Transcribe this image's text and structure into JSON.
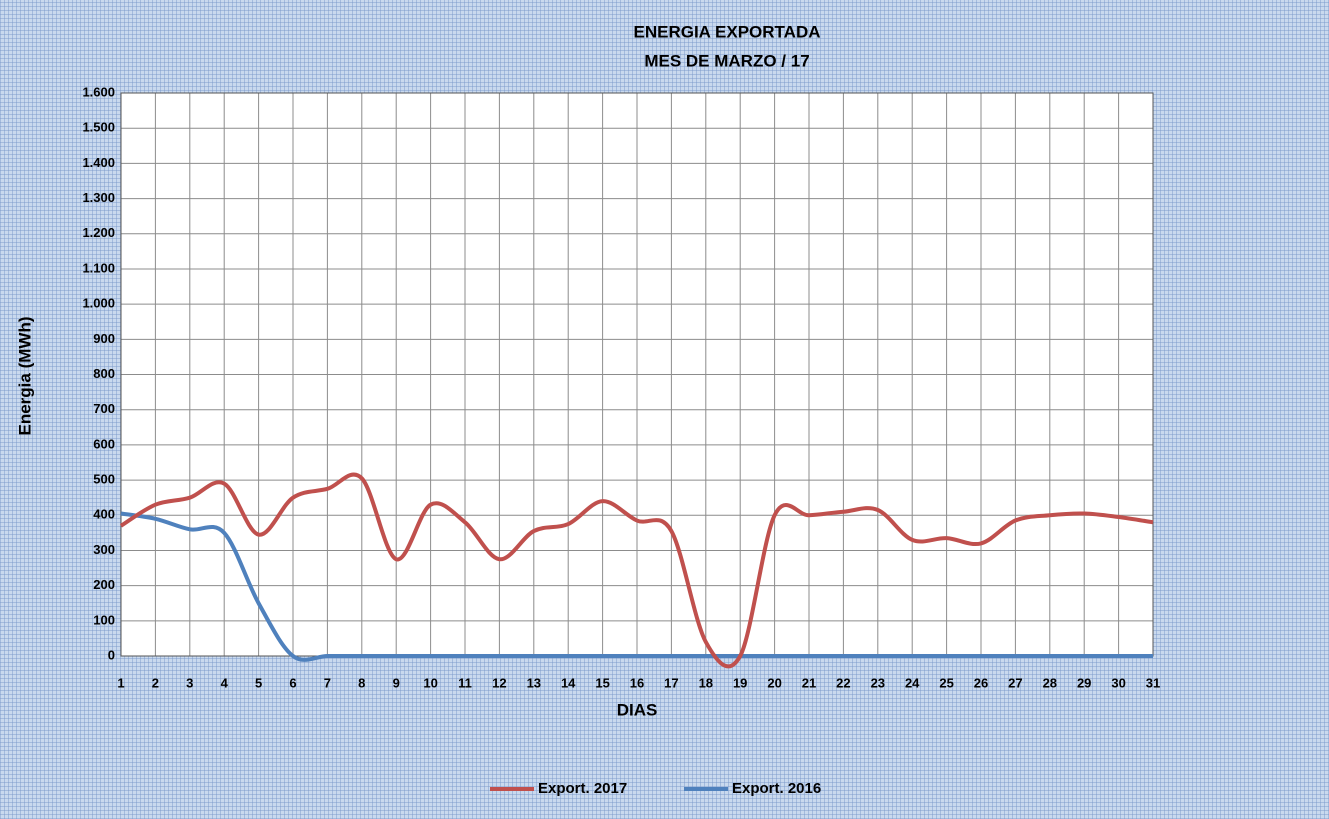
{
  "chart_data": {
    "type": "line",
    "title": "ENERGIA EXPORTADA",
    "subtitle": "MES DE MARZO / 17",
    "x_label": "DIAS",
    "y_label": "Energia (MWh)",
    "x": [
      1,
      2,
      3,
      4,
      5,
      6,
      7,
      8,
      9,
      10,
      11,
      12,
      13,
      14,
      15,
      16,
      17,
      18,
      19,
      20,
      21,
      22,
      23,
      24,
      25,
      26,
      27,
      28,
      29,
      30,
      31
    ],
    "series": [
      {
        "name": "Export. 2017",
        "color": "#c0504d",
        "values": [
          370,
          430,
          450,
          490,
          345,
          450,
          475,
          505,
          275,
          430,
          380,
          275,
          355,
          375,
          440,
          385,
          355,
          40,
          0,
          400,
          400,
          410,
          415,
          330,
          335,
          320,
          385,
          400,
          405,
          395,
          380
        ]
      },
      {
        "name": "Export. 2016",
        "color": "#4f81bd",
        "values": [
          405,
          390,
          360,
          350,
          150,
          0,
          0,
          0,
          0,
          0,
          0,
          0,
          0,
          0,
          0,
          0,
          0,
          0,
          0,
          0,
          0,
          0,
          0,
          0,
          0,
          0,
          0,
          0,
          0,
          0,
          0
        ]
      }
    ],
    "xlim": [
      1,
      31
    ],
    "xticks": [
      1,
      2,
      3,
      4,
      5,
      6,
      7,
      8,
      9,
      10,
      11,
      12,
      13,
      14,
      15,
      16,
      17,
      18,
      19,
      20,
      21,
      22,
      23,
      24,
      25,
      26,
      27,
      28,
      29,
      30,
      31
    ],
    "ylim": [
      0,
      1600
    ],
    "yticks": [
      0,
      100,
      200,
      300,
      400,
      500,
      600,
      700,
      800,
      900,
      {
        "value": 1000,
        "label": "1.000"
      },
      {
        "value": 1100,
        "label": "1.100"
      },
      {
        "value": 1200,
        "label": "1.200"
      },
      {
        "value": 1300,
        "label": "1.300"
      },
      {
        "value": 1400,
        "label": "1.400"
      },
      {
        "value": 1500,
        "label": "1.500"
      },
      {
        "value": 1600,
        "label": "1.600"
      }
    ],
    "grid": true,
    "legend": "bottom"
  }
}
